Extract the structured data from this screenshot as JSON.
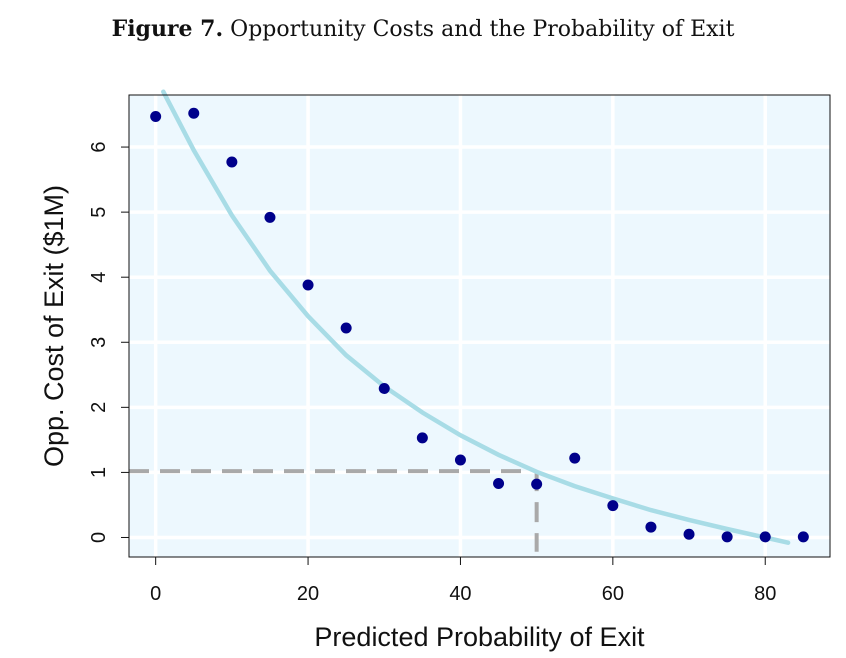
{
  "figure": {
    "label": "Figure 7.",
    "title": "Opportunity Costs and the Probability of Exit"
  },
  "chart_data": {
    "type": "scatter",
    "xlabel": "Predicted Probability of Exit",
    "ylabel": "Opp. Cost of Exit ($1M)",
    "xlim": [
      -3.5,
      88.5
    ],
    "ylim": [
      -0.3,
      6.8
    ],
    "xticks": [
      0,
      20,
      40,
      60,
      80
    ],
    "yticks": [
      0,
      1,
      2,
      3,
      4,
      5,
      6
    ],
    "grid": true,
    "colors": {
      "panel": "#edf8fe",
      "grid": "#ffffff",
      "points": "#00008b",
      "curve": "#a8dce6",
      "reference": "#a9a9a9"
    },
    "points": {
      "x": [
        0,
        5,
        10,
        15,
        20,
        25,
        30,
        35,
        40,
        45,
        50,
        55,
        60,
        65,
        70,
        75,
        80,
        85
      ],
      "y": [
        6.47,
        6.52,
        5.77,
        4.92,
        3.88,
        3.22,
        2.29,
        1.53,
        1.19,
        0.83,
        0.82,
        1.22,
        0.49,
        0.16,
        0.05,
        0.01,
        0.01,
        0.01
      ]
    },
    "fitted_curve": {
      "x": [
        1,
        5,
        10,
        15,
        20,
        25,
        30,
        35,
        40,
        45,
        50,
        55,
        60,
        65,
        70,
        75,
        80,
        83
      ],
      "y": [
        6.85,
        5.95,
        4.95,
        4.1,
        3.4,
        2.8,
        2.32,
        1.92,
        1.57,
        1.27,
        1.01,
        0.79,
        0.6,
        0.42,
        0.27,
        0.13,
        0.0,
        -0.08
      ]
    },
    "reference_lines": {
      "y_value": 1.02,
      "x_value": 50,
      "x_end": 49,
      "y_bottom": -0.22
    }
  }
}
